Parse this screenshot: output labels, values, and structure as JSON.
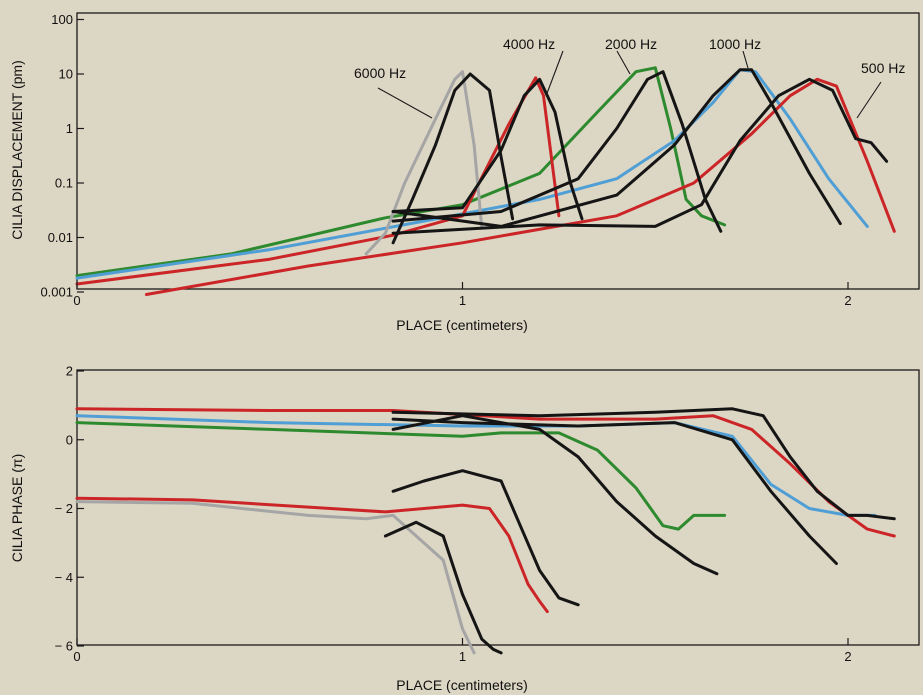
{
  "chart_data": [
    {
      "type": "line",
      "ylabel": "CILIA DISPLACEMENT (pm)",
      "xlabel": "PLACE (centimeters)",
      "y_scale": "log",
      "xlim": [
        0,
        2.13
      ],
      "ylim": [
        0.001,
        100
      ],
      "xticks": [
        "0",
        "1",
        "2"
      ],
      "yticks": [
        "100",
        "10",
        "1",
        "0.1",
        "0.01",
        "0.001"
      ],
      "grid": false,
      "annotations": [
        "6000 Hz",
        "4000 Hz",
        "2000 Hz",
        "1000 Hz",
        "500 Hz"
      ],
      "series": [
        {
          "color": "#2e8a2e",
          "x": [
            0,
            0.4,
            0.8,
            1.0,
            1.2,
            1.35,
            1.45,
            1.5,
            1.54,
            1.58,
            1.62,
            1.68
          ],
          "y": [
            0.002,
            0.005,
            0.023,
            0.04,
            0.15,
            2,
            11,
            13,
            1.0,
            0.05,
            0.025,
            0.017
          ]
        },
        {
          "color": "#4f9fd6",
          "x": [
            0,
            0.5,
            0.9,
            1.2,
            1.4,
            1.55,
            1.65,
            1.72,
            1.76,
            1.85,
            1.95,
            2.05
          ],
          "y": [
            0.0018,
            0.006,
            0.02,
            0.05,
            0.12,
            0.6,
            3,
            12,
            11,
            1.5,
            0.12,
            0.016
          ]
        },
        {
          "color": "#cc2528",
          "x": [
            0,
            0.5,
            0.82,
            1.0,
            1.12,
            1.19,
            1.21,
            1.25
          ],
          "y": [
            0.0014,
            0.004,
            0.011,
            0.025,
            1.2,
            8.5,
            4,
            0.025
          ]
        },
        {
          "color": "#cc2528",
          "x": [
            0.18,
            0.6,
            1.0,
            1.4,
            1.6,
            1.75,
            1.85,
            1.92,
            1.97,
            2.05,
            2.12
          ],
          "y": [
            0.0009,
            0.003,
            0.008,
            0.025,
            0.1,
            0.8,
            4,
            8,
            6,
            0.25,
            0.013
          ]
        },
        {
          "color": "#a5a5a5",
          "x": [
            0.75,
            0.8,
            0.85,
            0.93,
            0.98,
            1.0,
            1.03,
            1.05
          ],
          "y": [
            0.005,
            0.012,
            0.1,
            1.5,
            8,
            11,
            0.5,
            0.015
          ]
        },
        {
          "color": "#151515",
          "x": [
            0.82,
            0.87,
            0.93,
            0.98,
            1.02,
            1.07,
            1.1,
            1.13
          ],
          "y": [
            0.008,
            0.05,
            0.5,
            5,
            10,
            5,
            0.3,
            0.022
          ]
        },
        {
          "color": "#151515",
          "x": [
            0.82,
            1.0,
            1.1,
            1.16,
            1.2,
            1.24,
            1.28,
            1.31
          ],
          "y": [
            0.03,
            0.035,
            0.4,
            4,
            8,
            2,
            0.1,
            0.022
          ]
        },
        {
          "color": "#151515",
          "x": [
            0.82,
            1.1,
            1.3,
            1.4,
            1.48,
            1.52,
            1.57,
            1.63,
            1.67
          ],
          "y": [
            0.02,
            0.03,
            0.12,
            1,
            8,
            11,
            1.2,
            0.05,
            0.013
          ]
        },
        {
          "color": "#151515",
          "x": [
            0.82,
            1.1,
            1.4,
            1.55,
            1.65,
            1.72,
            1.75,
            1.8,
            1.9,
            1.98
          ],
          "y": [
            0.03,
            0.016,
            0.06,
            0.5,
            4,
            12,
            12,
            3,
            0.15,
            0.018
          ]
        },
        {
          "color": "#151515",
          "x": [
            0.82,
            1.2,
            1.5,
            1.62,
            1.72,
            1.82,
            1.9,
            1.96,
            2.02,
            2.06,
            2.1
          ],
          "y": [
            0.012,
            0.017,
            0.016,
            0.04,
            0.6,
            4,
            8,
            5,
            0.65,
            0.55,
            0.25
          ]
        }
      ]
    },
    {
      "type": "line",
      "ylabel": "CILIA PHASE (π)",
      "xlabel": "PLACE (centimeters)",
      "xlim": [
        0,
        2.13
      ],
      "ylim": [
        -6.2,
        2.2
      ],
      "xticks": [
        "0",
        "1",
        "2"
      ],
      "yticks": [
        "2",
        "0",
        "− 2",
        "− 4",
        "− 6"
      ],
      "grid": false,
      "series": [
        {
          "color": "#2e8a2e",
          "x": [
            0,
            0.5,
            1.0,
            1.1,
            1.25,
            1.35,
            1.45,
            1.52,
            1.56,
            1.6,
            1.68
          ],
          "y": [
            0.5,
            0.3,
            0.1,
            0.2,
            0.2,
            -0.3,
            -1.4,
            -2.5,
            -2.6,
            -2.2,
            -2.2
          ]
        },
        {
          "color": "#4f9fd6",
          "x": [
            0,
            0.5,
            1.0,
            1.3,
            1.55,
            1.7,
            1.8,
            1.9,
            2.0,
            2.07
          ],
          "y": [
            0.7,
            0.5,
            0.4,
            0.4,
            0.5,
            0.1,
            -1.3,
            -2.0,
            -2.2,
            -2.2
          ]
        },
        {
          "color": "#cc2528",
          "x": [
            0,
            0.5,
            0.82,
            1.2,
            1.5,
            1.65,
            1.75,
            1.85,
            1.95,
            2.05,
            2.12
          ],
          "y": [
            0.9,
            0.85,
            0.85,
            0.6,
            0.6,
            0.7,
            0.3,
            -0.7,
            -1.8,
            -2.6,
            -2.8
          ]
        },
        {
          "color": "#cc2528",
          "x": [
            0,
            0.3,
            0.8,
            1.0,
            1.07,
            1.12,
            1.17,
            1.2,
            1.22
          ],
          "y": [
            -1.7,
            -1.75,
            -2.1,
            -1.9,
            -2.0,
            -2.8,
            -4.2,
            -4.7,
            -5.0
          ]
        },
        {
          "color": "#a5a5a5",
          "x": [
            0,
            0.3,
            0.6,
            0.75,
            0.82,
            0.95,
            1.0,
            1.03
          ],
          "y": [
            -1.8,
            -1.85,
            -2.2,
            -2.3,
            -2.2,
            -3.5,
            -5.5,
            -6.2
          ]
        },
        {
          "color": "#151515",
          "x": [
            0.8,
            0.88,
            0.95,
            1.0,
            1.05,
            1.08,
            1.1
          ],
          "y": [
            -2.8,
            -2.4,
            -2.8,
            -4.5,
            -5.8,
            -6.1,
            -6.2
          ]
        },
        {
          "color": "#151515",
          "x": [
            0.82,
            0.9,
            1.0,
            1.1,
            1.15,
            1.2,
            1.25,
            1.3
          ],
          "y": [
            -1.5,
            -1.2,
            -0.9,
            -1.2,
            -2.5,
            -3.8,
            -4.6,
            -4.8
          ]
        },
        {
          "color": "#151515",
          "x": [
            0.82,
            1.0,
            1.2,
            1.3,
            1.4,
            1.5,
            1.6,
            1.66
          ],
          "y": [
            0.3,
            0.7,
            0.3,
            -0.5,
            -1.8,
            -2.8,
            -3.6,
            -3.9
          ]
        },
        {
          "color": "#151515",
          "x": [
            0.82,
            1.0,
            1.3,
            1.55,
            1.7,
            1.8,
            1.9,
            1.97
          ],
          "y": [
            0.6,
            0.5,
            0.4,
            0.5,
            0.0,
            -1.5,
            -2.8,
            -3.6
          ]
        },
        {
          "color": "#151515",
          "x": [
            0.82,
            1.2,
            1.5,
            1.7,
            1.78,
            1.85,
            1.92,
            2.0,
            2.05,
            2.12
          ],
          "y": [
            0.8,
            0.7,
            0.8,
            0.9,
            0.7,
            -0.5,
            -1.5,
            -2.2,
            -2.2,
            -2.3
          ]
        }
      ]
    }
  ]
}
